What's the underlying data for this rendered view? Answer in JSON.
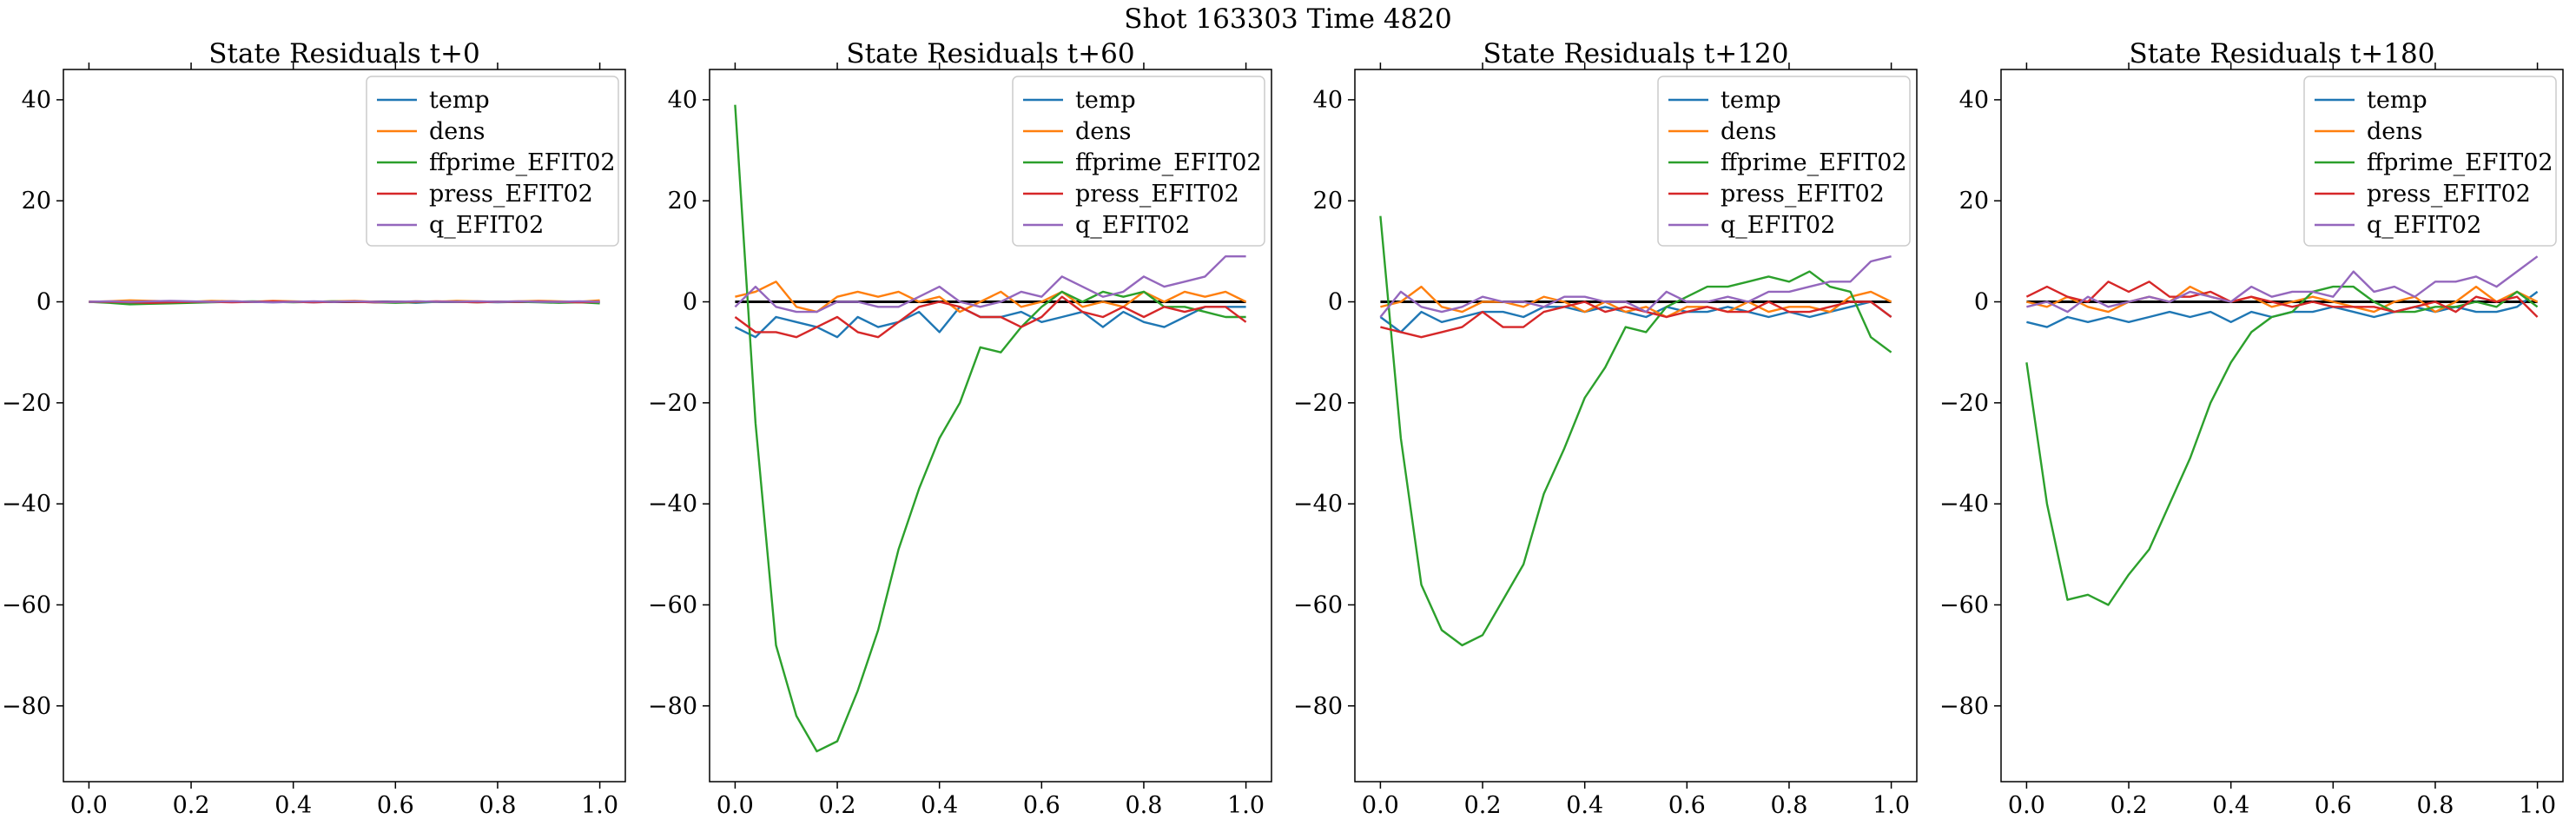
{
  "suptitle": "Shot 163303   Time 4820",
  "chart_data": [
    {
      "type": "line",
      "title": "State Residuals t+0",
      "xlim": [
        -0.05,
        1.05
      ],
      "ylim": [
        -95,
        46
      ],
      "xticks": [
        0.0,
        0.2,
        0.4,
        0.6,
        0.8,
        1.0
      ],
      "yticks": [
        40,
        20,
        0,
        -20,
        -40,
        -60,
        -80
      ],
      "legend_position": "top-right",
      "x": [
        0.0,
        0.04,
        0.08,
        0.12,
        0.16,
        0.2,
        0.24,
        0.28,
        0.32,
        0.36,
        0.4,
        0.44,
        0.48,
        0.52,
        0.56,
        0.6,
        0.64,
        0.68,
        0.72,
        0.76,
        0.8,
        0.84,
        0.88,
        0.92,
        0.96,
        1.0
      ],
      "series": [
        {
          "name": "temp",
          "color": "#1f77b4",
          "values": [
            0.0,
            -0.1,
            -0.2,
            -0.1,
            0.0,
            -0.1,
            0.0,
            0.1,
            0.0,
            -0.1,
            0.0,
            -0.1,
            0.0,
            0.1,
            -0.1,
            0.0,
            -0.2,
            0.0,
            0.1,
            0.0,
            -0.1,
            0.0,
            0.0,
            -0.1,
            0.0,
            -0.1
          ]
        },
        {
          "name": "dens",
          "color": "#ff7f0e",
          "values": [
            0.0,
            0.1,
            0.3,
            0.2,
            0.1,
            0.0,
            0.2,
            0.1,
            0.0,
            0.2,
            0.1,
            0.0,
            0.1,
            0.2,
            0.0,
            -0.1,
            0.1,
            0.0,
            0.2,
            0.1,
            0.0,
            0.1,
            0.2,
            0.1,
            0.0,
            0.3
          ]
        },
        {
          "name": "ffprime_EFIT02",
          "color": "#2ca02c",
          "values": [
            0.0,
            -0.2,
            -0.5,
            -0.4,
            -0.3,
            -0.2,
            -0.1,
            0.0,
            0.1,
            0.0,
            -0.1,
            0.0,
            0.1,
            0.0,
            -0.1,
            -0.2,
            -0.1,
            0.0,
            0.0,
            -0.1,
            0.0,
            0.0,
            -0.1,
            -0.2,
            -0.1,
            -0.3
          ]
        },
        {
          "name": "press_EFIT02",
          "color": "#d62728",
          "values": [
            0.0,
            0.0,
            -0.1,
            -0.2,
            -0.1,
            0.0,
            0.0,
            -0.1,
            0.0,
            0.1,
            0.0,
            -0.1,
            0.0,
            0.0,
            -0.1,
            0.0,
            0.0,
            0.1,
            0.0,
            -0.1,
            0.0,
            0.0,
            0.1,
            0.0,
            -0.1,
            0.0
          ]
        },
        {
          "name": "q_EFIT02",
          "color": "#9467bd",
          "values": [
            0.0,
            0.1,
            0.0,
            0.1,
            0.2,
            0.1,
            0.0,
            0.1,
            0.0,
            -0.1,
            0.0,
            0.1,
            0.0,
            0.1,
            0.0,
            0.0,
            0.1,
            0.0,
            0.0,
            0.1,
            0.0,
            0.1,
            0.0,
            0.0,
            0.1,
            0.0
          ]
        }
      ]
    },
    {
      "type": "line",
      "title": "State Residuals t+60",
      "xlim": [
        -0.05,
        1.05
      ],
      "ylim": [
        -95,
        46
      ],
      "xticks": [
        0.0,
        0.2,
        0.4,
        0.6,
        0.8,
        1.0
      ],
      "yticks": [
        40,
        20,
        0,
        -20,
        -40,
        -60,
        -80
      ],
      "legend_position": "top-right",
      "x": [
        0.0,
        0.04,
        0.08,
        0.12,
        0.16,
        0.2,
        0.24,
        0.28,
        0.32,
        0.36,
        0.4,
        0.44,
        0.48,
        0.52,
        0.56,
        0.6,
        0.64,
        0.68,
        0.72,
        0.76,
        0.8,
        0.84,
        0.88,
        0.92,
        0.96,
        1.0
      ],
      "series": [
        {
          "name": "temp",
          "color": "#1f77b4",
          "values": [
            -5,
            -7,
            -3,
            -4,
            -5,
            -7,
            -3,
            -5,
            -4,
            -2,
            -6,
            -1,
            -3,
            -3,
            -2,
            -4,
            -3,
            -2,
            -5,
            -2,
            -4,
            -5,
            -3,
            -1,
            -1,
            -1
          ]
        },
        {
          "name": "dens",
          "color": "#ff7f0e",
          "values": [
            1,
            2,
            4,
            -1,
            -2,
            1,
            2,
            1,
            2,
            0,
            1,
            -2,
            0,
            2,
            -1,
            0,
            2,
            -1,
            0,
            -1,
            2,
            0,
            2,
            1,
            2,
            0
          ]
        },
        {
          "name": "ffprime_EFIT02",
          "color": "#2ca02c",
          "values": [
            39,
            -24,
            -68,
            -82,
            -89,
            -87,
            -77,
            -65,
            -49,
            -37,
            -27,
            -20,
            -9,
            -10,
            -5,
            -1,
            2,
            0,
            2,
            1,
            2,
            -1,
            -1,
            -2,
            -3,
            -3
          ]
        },
        {
          "name": "press_EFIT02",
          "color": "#d62728",
          "values": [
            -3,
            -6,
            -6,
            -7,
            -5,
            -3,
            -6,
            -7,
            -4,
            -1,
            0,
            -1,
            -3,
            -3,
            -5,
            -3,
            1,
            -2,
            -3,
            -1,
            -3,
            -1,
            -2,
            -1,
            -1,
            -4
          ]
        },
        {
          "name": "q_EFIT02",
          "color": "#9467bd",
          "values": [
            -1,
            3,
            -1,
            -2,
            -2,
            0,
            0,
            -1,
            -1,
            1,
            3,
            0,
            -1,
            0,
            2,
            1,
            5,
            3,
            1,
            2,
            5,
            3,
            4,
            5,
            9,
            9
          ]
        }
      ]
    },
    {
      "type": "line",
      "title": "State Residuals t+120",
      "xlim": [
        -0.05,
        1.05
      ],
      "ylim": [
        -95,
        46
      ],
      "xticks": [
        0.0,
        0.2,
        0.4,
        0.6,
        0.8,
        1.0
      ],
      "yticks": [
        40,
        20,
        0,
        -20,
        -40,
        -60,
        -80
      ],
      "legend_position": "top-right",
      "x": [
        0.0,
        0.04,
        0.08,
        0.12,
        0.16,
        0.2,
        0.24,
        0.28,
        0.32,
        0.36,
        0.4,
        0.44,
        0.48,
        0.52,
        0.56,
        0.6,
        0.64,
        0.68,
        0.72,
        0.76,
        0.8,
        0.84,
        0.88,
        0.92,
        0.96,
        1.0
      ],
      "series": [
        {
          "name": "temp",
          "color": "#1f77b4",
          "values": [
            -3,
            -6,
            -2,
            -4,
            -3,
            -2,
            -2,
            -3,
            -1,
            -1,
            -2,
            -1,
            -2,
            -3,
            -1,
            -2,
            -2,
            -1,
            -2,
            -3,
            -2,
            -3,
            -2,
            -1,
            0,
            -3
          ]
        },
        {
          "name": "dens",
          "color": "#ff7f0e",
          "values": [
            -1,
            0,
            3,
            -1,
            -2,
            0,
            0,
            -1,
            1,
            0,
            -2,
            0,
            -2,
            -1,
            -3,
            -1,
            -1,
            -2,
            0,
            -2,
            -1,
            -1,
            -2,
            1,
            2,
            0
          ]
        },
        {
          "name": "ffprime_EFIT02",
          "color": "#2ca02c",
          "values": [
            17,
            -27,
            -56,
            -65,
            -68,
            -66,
            -59,
            -52,
            -38,
            -29,
            -19,
            -13,
            -5,
            -6,
            -1,
            1,
            3,
            3,
            4,
            5,
            4,
            6,
            3,
            2,
            -7,
            -10
          ]
        },
        {
          "name": "press_EFIT02",
          "color": "#d62728",
          "values": [
            -5,
            -6,
            -7,
            -6,
            -5,
            -2,
            -5,
            -5,
            -2,
            -1,
            0,
            -2,
            -1,
            -2,
            -3,
            -2,
            -1,
            -2,
            -2,
            0,
            -2,
            -2,
            -1,
            0,
            0,
            -3
          ]
        },
        {
          "name": "q_EFIT02",
          "color": "#9467bd",
          "values": [
            -3,
            2,
            -1,
            -2,
            -1,
            1,
            0,
            0,
            -1,
            1,
            1,
            0,
            0,
            -2,
            2,
            0,
            0,
            1,
            0,
            2,
            2,
            3,
            4,
            4,
            8,
            9
          ]
        }
      ]
    },
    {
      "type": "line",
      "title": "State Residuals t+180",
      "xlim": [
        -0.05,
        1.05
      ],
      "ylim": [
        -95,
        46
      ],
      "xticks": [
        0.0,
        0.2,
        0.4,
        0.6,
        0.8,
        1.0
      ],
      "yticks": [
        40,
        20,
        0,
        -20,
        -40,
        -60,
        -80
      ],
      "legend_position": "top-right",
      "x": [
        0.0,
        0.04,
        0.08,
        0.12,
        0.16,
        0.2,
        0.24,
        0.28,
        0.32,
        0.36,
        0.4,
        0.44,
        0.48,
        0.52,
        0.56,
        0.6,
        0.64,
        0.68,
        0.72,
        0.76,
        0.8,
        0.84,
        0.88,
        0.92,
        0.96,
        1.0
      ],
      "series": [
        {
          "name": "temp",
          "color": "#1f77b4",
          "values": [
            -4,
            -5,
            -3,
            -4,
            -3,
            -4,
            -3,
            -2,
            -3,
            -2,
            -4,
            -2,
            -3,
            -2,
            -2,
            -1,
            -2,
            -3,
            -2,
            -1,
            -2,
            -1,
            -2,
            -2,
            -1,
            2
          ]
        },
        {
          "name": "dens",
          "color": "#ff7f0e",
          "values": [
            0,
            -1,
            1,
            -1,
            -2,
            0,
            1,
            0,
            3,
            1,
            0,
            1,
            -1,
            0,
            1,
            0,
            -1,
            -2,
            0,
            1,
            -2,
            0,
            3,
            0,
            2,
            0
          ]
        },
        {
          "name": "ffprime_EFIT02",
          "color": "#2ca02c",
          "values": [
            -12,
            -40,
            -59,
            -58,
            -60,
            -54,
            -49,
            -40,
            -31,
            -20,
            -12,
            -6,
            -3,
            -2,
            2,
            3,
            3,
            0,
            -2,
            -2,
            -1,
            -1,
            0,
            -1,
            2,
            -1
          ]
        },
        {
          "name": "press_EFIT02",
          "color": "#d62728",
          "values": [
            1,
            3,
            1,
            0,
            4,
            2,
            4,
            1,
            1,
            2,
            0,
            1,
            0,
            -1,
            0,
            -1,
            -1,
            -1,
            -2,
            -1,
            0,
            -2,
            1,
            0,
            1,
            -3
          ]
        },
        {
          "name": "q_EFIT02",
          "color": "#9467bd",
          "values": [
            -1,
            0,
            -2,
            1,
            -1,
            0,
            1,
            0,
            2,
            1,
            0,
            3,
            1,
            2,
            2,
            1,
            6,
            2,
            3,
            1,
            4,
            4,
            5,
            3,
            6,
            9
          ]
        }
      ]
    }
  ]
}
